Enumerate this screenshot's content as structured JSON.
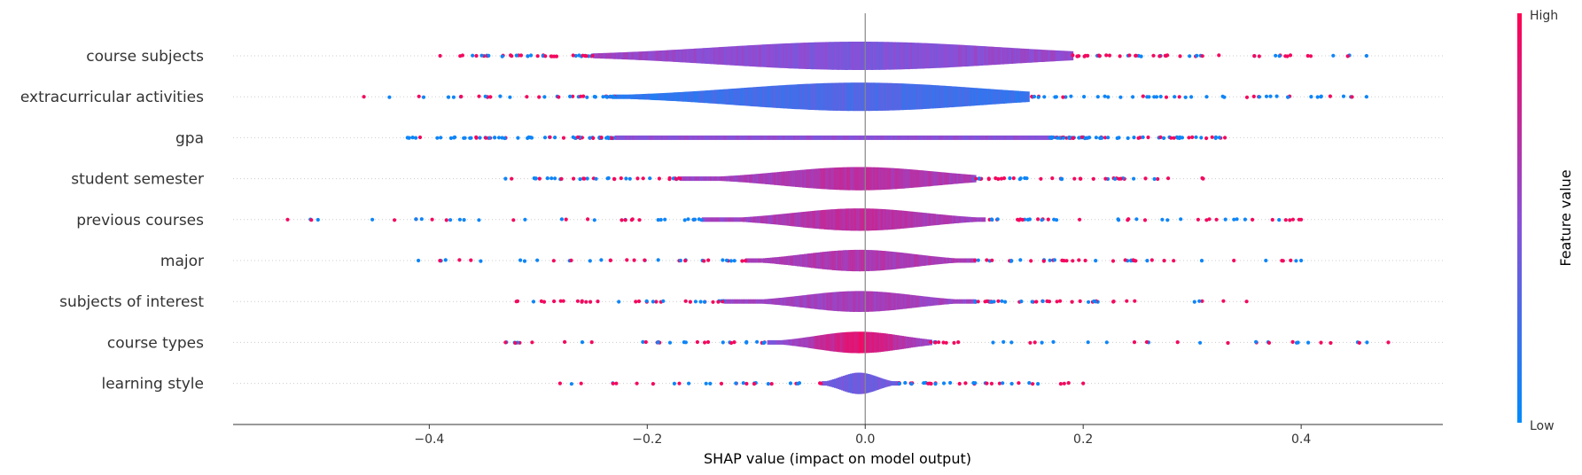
{
  "chart_data": {
    "type": "violin",
    "xlabel": "SHAP value (impact on model output)",
    "xlim": [
      -0.58,
      0.53
    ],
    "xticks": [
      -0.4,
      -0.2,
      0.0,
      0.2,
      0.4
    ],
    "xtick_labels": [
      "−0.4",
      "−0.2",
      "0.0",
      "0.2",
      "0.4"
    ],
    "colorbar": {
      "label": "Feature value",
      "high_label": "High",
      "low_label": "Low",
      "low_color": "#008bfb",
      "high_color": "#ff0052"
    },
    "features": [
      {
        "name": "course subjects",
        "min": -0.39,
        "max": 0.46,
        "core_min": -0.25,
        "core_max": 0.19,
        "width": 0.95,
        "spread": 0.13,
        "density": 1.0,
        "center_color": 0.45,
        "edge_color": 0.62,
        "dot_color_bias": 0.65
      },
      {
        "name": "extracurricular activities",
        "min": -0.46,
        "max": 0.46,
        "core_min": -0.23,
        "core_max": 0.15,
        "width": 0.95,
        "spread": 0.11,
        "density": 1.0,
        "center_color": 0.3,
        "edge_color": 0.1,
        "dot_color_bias": 0.35
      },
      {
        "name": "gpa",
        "min": -0.42,
        "max": 0.33,
        "core_min": -0.23,
        "core_max": 0.17,
        "width": 0.12,
        "spread": 0.2,
        "density": 1.6,
        "center_color": 0.5,
        "edge_color": 0.5,
        "dot_color_bias": 0.35
      },
      {
        "name": "student semester",
        "min": -0.33,
        "max": 0.31,
        "core_min": -0.17,
        "core_max": 0.1,
        "width": 0.78,
        "spread": 0.07,
        "density": 0.9,
        "center_color": 0.7,
        "edge_color": 0.55,
        "dot_color_bias": 0.55
      },
      {
        "name": "previous courses",
        "min": -0.53,
        "max": 0.4,
        "core_min": -0.15,
        "core_max": 0.11,
        "width": 0.75,
        "spread": 0.06,
        "density": 0.9,
        "center_color": 0.72,
        "edge_color": 0.55,
        "dot_color_bias": 0.55
      },
      {
        "name": "major",
        "min": -0.41,
        "max": 0.4,
        "core_min": -0.11,
        "core_max": 0.1,
        "width": 0.72,
        "spread": 0.05,
        "density": 0.9,
        "center_color": 0.65,
        "edge_color": 0.6,
        "dot_color_bias": 0.55
      },
      {
        "name": "subjects of interest",
        "min": -0.32,
        "max": 0.35,
        "core_min": -0.13,
        "core_max": 0.1,
        "width": 0.7,
        "spread": 0.05,
        "density": 0.9,
        "center_color": 0.62,
        "edge_color": 0.55,
        "dot_color_bias": 0.55
      },
      {
        "name": "course types",
        "min": -0.33,
        "max": 0.48,
        "core_min": -0.09,
        "core_max": 0.06,
        "width": 0.72,
        "spread": 0.04,
        "density": 0.8,
        "center_color": 0.9,
        "edge_color": 0.35,
        "dot_color_bias": 0.55
      },
      {
        "name": "learning style",
        "min": -0.28,
        "max": 0.2,
        "core_min": -0.04,
        "core_max": 0.03,
        "width": 0.72,
        "spread": 0.017,
        "density": 0.7,
        "center_color": 0.4,
        "edge_color": 0.4,
        "dot_color_bias": 0.45
      }
    ]
  }
}
